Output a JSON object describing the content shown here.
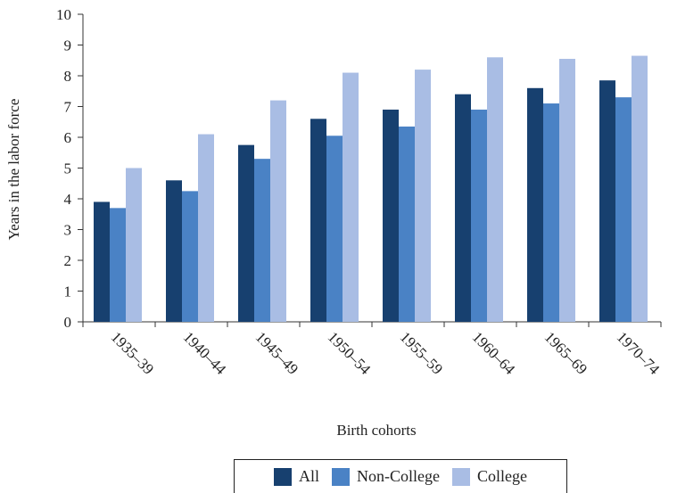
{
  "chart_data": {
    "type": "bar",
    "xlabel": "Birth cohorts",
    "ylabel": "Years in the labor force",
    "ylim": [
      0,
      10
    ],
    "yticks": [
      "0",
      "1",
      "2",
      "3",
      "4",
      "5",
      "6",
      "7",
      "8",
      "9",
      "10"
    ],
    "categories": [
      "1935–39",
      "1940–44",
      "1945–49",
      "1950–54",
      "1955–59",
      "1960–64",
      "1965–69",
      "1970–74"
    ],
    "series": [
      {
        "name": "All",
        "color": "#17406f",
        "values": [
          3.9,
          4.6,
          5.75,
          6.6,
          6.9,
          7.4,
          7.6,
          7.85
        ]
      },
      {
        "name": "Non-College",
        "color": "#4a82c5",
        "values": [
          3.7,
          4.25,
          5.3,
          6.05,
          6.35,
          6.9,
          7.1,
          7.3
        ]
      },
      {
        "name": "College",
        "color": "#a9bde4",
        "values": [
          5.0,
          6.1,
          7.2,
          8.1,
          8.2,
          8.6,
          8.55,
          8.65
        ]
      }
    ],
    "grid": false,
    "legend_position": "bottom"
  }
}
